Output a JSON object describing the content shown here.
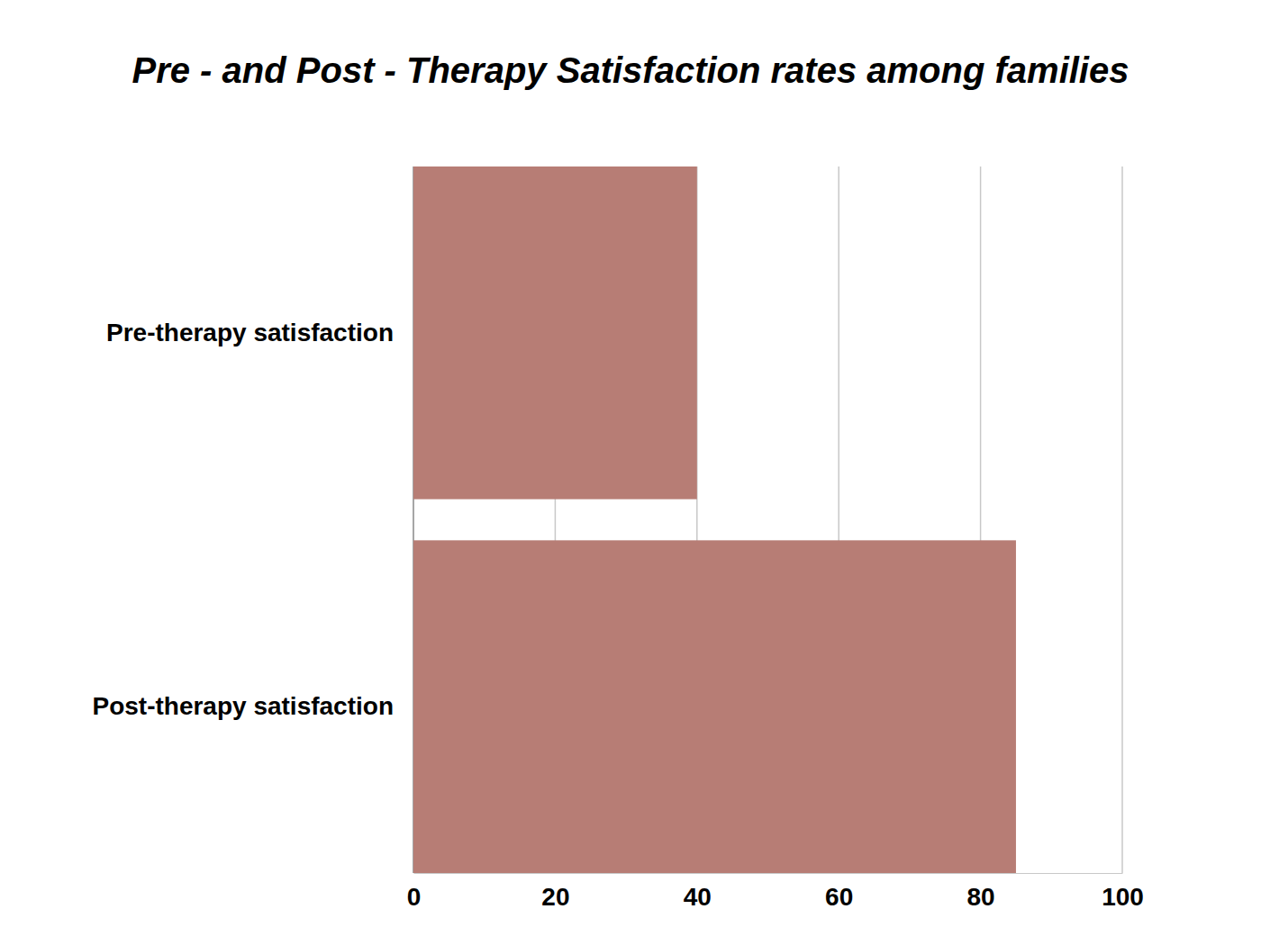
{
  "chart_data": {
    "type": "bar",
    "title": "Pre - and Post - Therapy Satisfaction rates among families",
    "orientation": "horizontal",
    "categories": [
      "Pre-therapy satisfaction",
      "Post-therapy satisfaction"
    ],
    "values": [
      40,
      85
    ],
    "color": "#b77d75",
    "xlim": [
      0,
      100
    ],
    "xticks": [
      0,
      20,
      40,
      60,
      80,
      100
    ],
    "grid": true
  }
}
